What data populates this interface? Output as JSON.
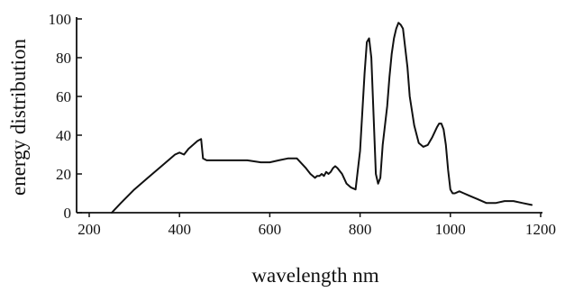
{
  "chart_data": {
    "type": "line",
    "title": "",
    "xlabel": "wavelength nm",
    "ylabel": "energy distribution",
    "xlim": [
      200,
      1200
    ],
    "ylim": [
      0,
      100
    ],
    "xticks": [
      200,
      400,
      600,
      800,
      1000,
      1200
    ],
    "yticks": [
      0,
      20,
      40,
      60,
      80,
      100
    ],
    "grid": false,
    "legend": "none",
    "line_color": "#111111",
    "series": [
      {
        "x": [
          250,
          270,
          300,
          330,
          360,
          390,
          400,
          410,
          420,
          430,
          440,
          448,
          452,
          460,
          480,
          500,
          520,
          550,
          580,
          600,
          620,
          640,
          660,
          680,
          690,
          700,
          705,
          710,
          715,
          720,
          725,
          730,
          735,
          740,
          745,
          750,
          760,
          770,
          780,
          790,
          800,
          805,
          810,
          815,
          820,
          825,
          830,
          835,
          840,
          845,
          850,
          855,
          860,
          865,
          870,
          875,
          880,
          885,
          890,
          895,
          900,
          905,
          910,
          920,
          930,
          940,
          950,
          960,
          970,
          975,
          980,
          985,
          990,
          995,
          1000,
          1005,
          1010,
          1020,
          1030,
          1040,
          1050,
          1060,
          1080,
          1100,
          1120,
          1140,
          1160,
          1180
        ],
        "y": [
          0,
          5,
          12,
          18,
          24,
          30,
          31,
          30,
          33,
          35,
          37,
          38,
          28,
          27,
          27,
          27,
          27,
          27,
          26,
          26,
          27,
          28,
          28,
          23,
          20,
          18,
          19,
          19,
          20,
          19,
          21,
          20,
          21,
          23,
          24,
          23,
          20,
          15,
          13,
          12,
          32,
          52,
          72,
          88,
          90,
          80,
          50,
          20,
          15,
          18,
          35,
          45,
          55,
          70,
          82,
          90,
          95,
          98,
          97,
          95,
          85,
          75,
          60,
          45,
          36,
          34,
          35,
          39,
          44,
          46,
          46,
          43,
          35,
          22,
          12,
          10,
          10,
          11,
          10,
          9,
          8,
          7,
          5,
          5,
          6,
          6,
          5,
          4
        ]
      }
    ]
  }
}
